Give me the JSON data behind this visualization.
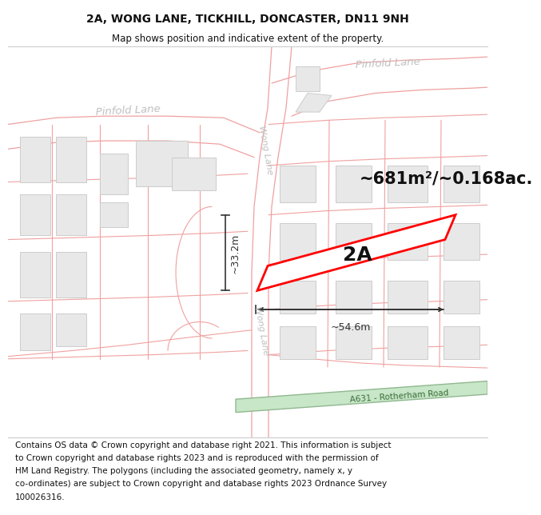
{
  "title_line1": "2A, WONG LANE, TICKHILL, DONCASTER, DN11 9NH",
  "title_line2": "Map shows position and indicative extent of the property.",
  "footer_lines": [
    "Contains OS data © Crown copyright and database right 2021. This information is subject",
    "to Crown copyright and database rights 2023 and is reproduced with the permission of",
    "HM Land Registry. The polygons (including the associated geometry, namely x, y",
    "co-ordinates) are subject to Crown copyright and database rights 2023 Ordnance Survey",
    "100026316."
  ],
  "map_bg": "#ffffff",
  "road_line_color": "#f0a0a0",
  "building_fill": "#e8e8e8",
  "building_edge": "#cccccc",
  "property_fill": "#ffffff",
  "property_edge": "#ff0000",
  "dim_color": "#333333",
  "area_text": "~681m²/~0.168ac.",
  "label_2A": "2A",
  "dim_width": "~54.6m",
  "dim_height": "~33.2m",
  "pinfold_lane_right": "Pinfold Lane",
  "pinfold_lane_left": "Pinfold Lane",
  "wong_lane_top": "Wong Lane",
  "wong_lane_bottom": "Wong Lane",
  "a631_label": "A631 - Rotherham Road",
  "road_label_color": "#c0c0c0",
  "green_fill": "#c8e6c8",
  "green_edge": "#90b890",
  "title_fontsize": 10,
  "subtitle_fontsize": 8.5,
  "footer_fontsize": 7.5,
  "area_fontsize": 15,
  "label_2A_fontsize": 18
}
